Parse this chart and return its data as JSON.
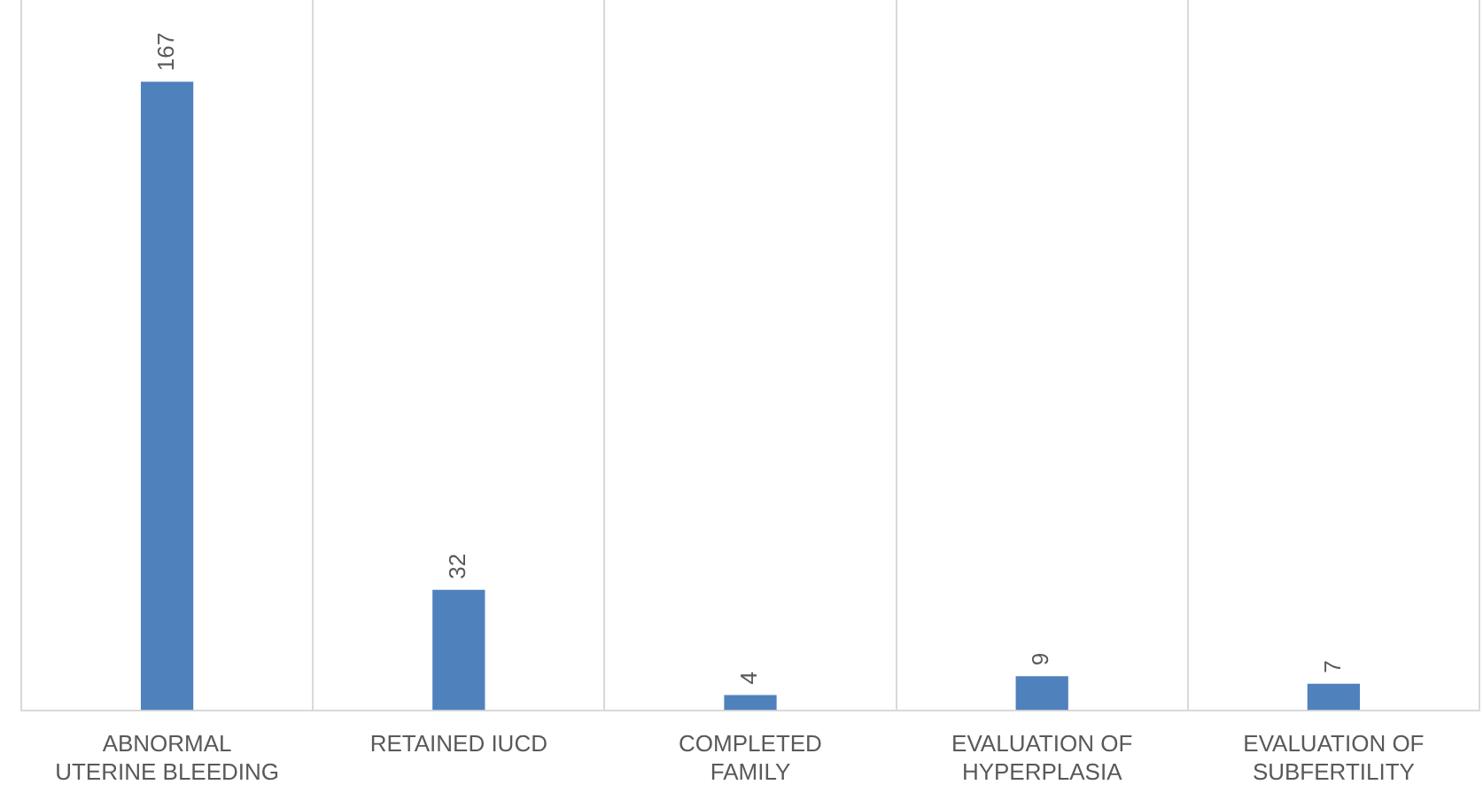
{
  "chart_data": {
    "type": "bar",
    "categories": [
      "ABNORMAL\nUTERINE BLEEDING",
      "RETAINED IUCD",
      "COMPLETED\nFAMILY",
      "EVALUATION OF\nHYPERPLASIA",
      "EVALUATION OF\nSUBFERTILITY"
    ],
    "values": [
      167,
      32,
      4,
      9,
      7
    ],
    "color": "#4f81bd",
    "data_labels": true,
    "grid": "x",
    "legend": false
  }
}
